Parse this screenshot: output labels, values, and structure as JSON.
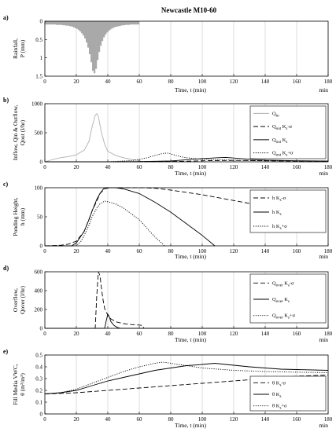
{
  "title": "Newcastle M10-60",
  "time_axis_label": "Time, t (min)",
  "time_axis_unit": "min",
  "chart_data": [
    {
      "id": "a",
      "type": "bar",
      "panel_label": "a)",
      "ylabel_lines": [
        "Rainfall,",
        "P (mm)"
      ],
      "y_reversed": true,
      "xlim": [
        0,
        180
      ],
      "ylim": [
        0,
        1.5
      ],
      "xticks": [
        0,
        20,
        40,
        60,
        80,
        100,
        120,
        140,
        160,
        180
      ],
      "yticks": [
        0,
        0.5,
        1,
        1.5
      ],
      "ytick_labels": [
        "0",
        "0.5",
        "1",
        "1.5"
      ],
      "bar_width_min": 1,
      "bars": {
        "t": [
          0,
          1,
          2,
          3,
          4,
          5,
          6,
          7,
          8,
          9,
          10,
          11,
          12,
          13,
          14,
          15,
          16,
          17,
          18,
          19,
          20,
          21,
          22,
          23,
          24,
          25,
          26,
          27,
          28,
          29,
          30,
          31,
          32,
          33,
          34,
          35,
          36,
          37,
          38,
          39,
          40,
          41,
          42,
          43,
          44,
          45,
          46,
          47,
          48,
          49,
          50,
          51,
          52,
          53,
          54,
          55,
          56,
          57,
          58,
          59
        ],
        "p": [
          0.09,
          0.09,
          0.09,
          0.09,
          0.09,
          0.09,
          0.09,
          0.1,
          0.1,
          0.1,
          0.1,
          0.11,
          0.11,
          0.12,
          0.12,
          0.13,
          0.14,
          0.15,
          0.17,
          0.19,
          0.21,
          0.24,
          0.28,
          0.33,
          0.39,
          0.47,
          0.58,
          0.72,
          0.9,
          1.12,
          1.35,
          1.42,
          1.3,
          1.06,
          0.84,
          0.67,
          0.54,
          0.44,
          0.37,
          0.31,
          0.27,
          0.23,
          0.2,
          0.18,
          0.16,
          0.15,
          0.14,
          0.13,
          0.12,
          0.11,
          0.11,
          0.1,
          0.1,
          0.1,
          0.09,
          0.09,
          0.09,
          0.09,
          0.09,
          0.09
        ]
      }
    },
    {
      "id": "b",
      "type": "line",
      "panel_label": "b)",
      "ylabel_lines": [
        "Inflow, Qin & Outflow,",
        "Qout (l/hr)"
      ],
      "xlim": [
        0,
        180
      ],
      "ylim": [
        0,
        1000
      ],
      "xticks": [
        0,
        20,
        40,
        60,
        80,
        100,
        120,
        140,
        160,
        180
      ],
      "yticks": [
        0,
        500,
        1000
      ],
      "ytick_labels": [
        "0",
        "500",
        "1000"
      ],
      "legend_position": "top-right",
      "series": [
        {
          "name": "Q_in",
          "color": "#b0b0b0",
          "dash": "",
          "x": [
            0,
            5,
            10,
            15,
            20,
            25,
            28,
            30,
            32,
            33,
            34,
            36,
            38,
            40,
            45,
            50,
            55,
            60,
            62
          ],
          "y": [
            0,
            40,
            70,
            90,
            120,
            200,
            350,
            600,
            800,
            830,
            780,
            500,
            300,
            180,
            110,
            70,
            40,
            20,
            0
          ]
        },
        {
          "name": "Q_out K_s-σ",
          "color": "#000000",
          "dash": "6,3",
          "x": [
            0,
            40,
            60,
            80,
            90,
            100,
            110,
            120,
            130,
            140,
            160,
            180
          ],
          "y": [
            0,
            0,
            2,
            6,
            10,
            18,
            22,
            24,
            22,
            18,
            12,
            8
          ]
        },
        {
          "name": "Q_out K_s",
          "color": "#000000",
          "dash": "",
          "x": [
            0,
            40,
            60,
            80,
            90,
            100,
            110,
            115,
            120,
            130,
            140,
            160,
            180
          ],
          "y": [
            0,
            0,
            4,
            15,
            35,
            55,
            70,
            75,
            65,
            45,
            30,
            18,
            12
          ]
        },
        {
          "name": "Q_out K_s+σ",
          "color": "#000000",
          "dash": "1.2,1.6",
          "x": [
            0,
            40,
            55,
            60,
            65,
            70,
            75,
            78,
            82,
            86,
            90,
            95,
            100,
            110,
            120,
            140,
            160,
            180
          ],
          "y": [
            0,
            0,
            20,
            40,
            70,
            110,
            145,
            150,
            120,
            90,
            70,
            55,
            45,
            35,
            28,
            20,
            14,
            10
          ]
        }
      ]
    },
    {
      "id": "c",
      "type": "line",
      "panel_label": "c)",
      "ylabel_lines": [
        "Ponding Height,",
        "h (mm)"
      ],
      "xlim": [
        0,
        180
      ],
      "ylim": [
        0,
        100
      ],
      "xticks": [
        0,
        20,
        40,
        60,
        80,
        100,
        120,
        140,
        160,
        180
      ],
      "yticks": [
        0,
        50,
        100
      ],
      "ytick_labels": [
        "0",
        "50",
        "100"
      ],
      "legend_position": "top-right",
      "series": [
        {
          "name": "h K_s-σ",
          "color": "#000000",
          "dash": "6,3",
          "x": [
            0,
            10,
            15,
            20,
            25,
            28,
            30,
            33,
            35,
            38,
            41,
            45,
            50,
            55,
            60,
            62,
            70,
            80,
            100,
            120,
            140,
            160,
            180
          ],
          "y": [
            0,
            1,
            3,
            8,
            25,
            45,
            60,
            77,
            90,
            98,
            100,
            100,
            100,
            100,
            100,
            100,
            99,
            96,
            88,
            78,
            68,
            56,
            48
          ]
        },
        {
          "name": "h K_s",
          "color": "#000000",
          "dash": "",
          "x": [
            0,
            17,
            20,
            25,
            28,
            30,
            33,
            35,
            37,
            38,
            40,
            45,
            50,
            55,
            60,
            70,
            80,
            90,
            100,
            108
          ],
          "y": [
            0,
            0,
            5,
            25,
            45,
            60,
            80,
            90,
            97,
            100,
            100,
            100,
            98,
            94,
            90,
            75,
            58,
            38,
            18,
            0
          ]
        },
        {
          "name": "h K_s+σ",
          "color": "#000000",
          "dash": "1.2,1.6",
          "x": [
            0,
            20,
            23,
            25,
            28,
            30,
            33,
            35,
            38,
            40,
            45,
            50,
            55,
            60,
            65,
            70,
            75,
            76
          ],
          "y": [
            0,
            0,
            8,
            18,
            35,
            50,
            65,
            72,
            77,
            76,
            72,
            65,
            55,
            45,
            30,
            15,
            3,
            0
          ]
        }
      ]
    },
    {
      "id": "d",
      "type": "line",
      "panel_label": "d)",
      "ylabel_lines": [
        "Overflow,",
        "Qover (l/hr)"
      ],
      "xlim": [
        0,
        180
      ],
      "ylim": [
        0,
        600
      ],
      "xticks": [
        0,
        20,
        40,
        60,
        80,
        100,
        120,
        140,
        160,
        180
      ],
      "yticks": [
        0,
        200,
        400,
        600
      ],
      "ytick_labels": [
        "0",
        "200",
        "400",
        "600"
      ],
      "legend_position": "top-right",
      "series": [
        {
          "name": "Q_over K_s-σ",
          "color": "#000000",
          "dash": "6,3",
          "x": [
            0,
            32,
            33,
            34,
            35,
            36,
            37,
            38,
            40,
            42,
            45,
            50,
            55,
            60,
            62,
            63,
            180
          ],
          "y": [
            0,
            0,
            350,
            600,
            560,
            420,
            300,
            210,
            140,
            100,
            70,
            50,
            40,
            35,
            30,
            0,
            0
          ]
        },
        {
          "name": "Q_over K_s",
          "color": "#000000",
          "dash": "",
          "x": [
            0,
            38,
            39,
            40,
            41,
            42,
            44,
            46,
            48,
            180
          ],
          "y": [
            0,
            0,
            80,
            150,
            120,
            70,
            30,
            10,
            0,
            0
          ]
        },
        {
          "name": "Q_over K_s+σ",
          "color": "#000000",
          "dash": "1.2,1.6",
          "x": [
            0,
            180
          ],
          "y": [
            0,
            0
          ]
        }
      ]
    },
    {
      "id": "e",
      "type": "line",
      "panel_label": "e)",
      "ylabel_lines": [
        "Fill Media VWC,",
        "θ (m³/m³)"
      ],
      "xlim": [
        0,
        180
      ],
      "ylim": [
        0,
        0.5
      ],
      "xticks": [
        0,
        20,
        40,
        60,
        80,
        100,
        120,
        140,
        160,
        180
      ],
      "yticks": [
        0,
        0.1,
        0.2,
        0.3,
        0.4,
        0.5
      ],
      "ytick_labels": [
        "0",
        "0.1",
        "0.2",
        "0.3",
        "0.4",
        "0.5"
      ],
      "legend_position": "top-right",
      "series": [
        {
          "name": "θ K_s-σ",
          "color": "#000000",
          "dash": "6,3",
          "x": [
            0,
            10,
            20,
            30,
            40,
            60,
            80,
            100,
            120,
            140,
            160,
            180
          ],
          "y": [
            0.17,
            0.175,
            0.18,
            0.19,
            0.2,
            0.22,
            0.24,
            0.26,
            0.28,
            0.3,
            0.32,
            0.33
          ]
        },
        {
          "name": "θ K_s",
          "color": "#000000",
          "dash": "",
          "x": [
            0,
            10,
            20,
            30,
            40,
            50,
            60,
            70,
            80,
            90,
            100,
            108,
            115,
            130,
            150,
            180
          ],
          "y": [
            0.17,
            0.18,
            0.2,
            0.24,
            0.28,
            0.31,
            0.34,
            0.37,
            0.39,
            0.41,
            0.42,
            0.43,
            0.42,
            0.4,
            0.38,
            0.37
          ]
        },
        {
          "name": "θ K_s+σ",
          "color": "#000000",
          "dash": "1.2,1.6",
          "x": [
            0,
            10,
            20,
            30,
            40,
            50,
            60,
            70,
            75,
            80,
            90,
            100,
            120,
            140,
            160,
            180
          ],
          "y": [
            0.17,
            0.18,
            0.21,
            0.26,
            0.31,
            0.36,
            0.4,
            0.43,
            0.44,
            0.43,
            0.41,
            0.39,
            0.37,
            0.36,
            0.355,
            0.35
          ]
        }
      ]
    }
  ]
}
